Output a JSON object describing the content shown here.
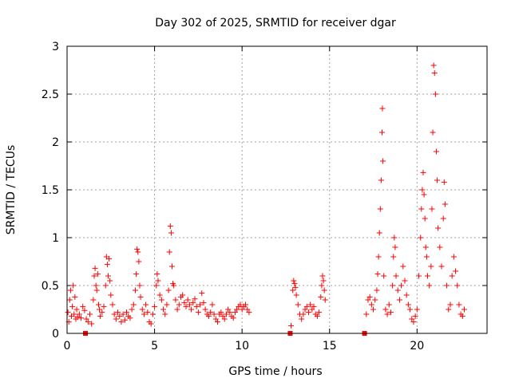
{
  "chart_data": {
    "type": "scatter",
    "title": "Day 302 of 2025, SRMTID for receiver dgar",
    "xlabel": "GPS time / hours",
    "ylabel": "SRMTID / TECUs",
    "xlim": [
      0,
      24
    ],
    "ylim": [
      0,
      3
    ],
    "xticks": [
      0,
      5,
      10,
      15,
      20
    ],
    "xtick_labels": [
      "0",
      "5",
      "10",
      "15",
      "20"
    ],
    "yticks": [
      0,
      0.5,
      1,
      1.5,
      2,
      2.5,
      3
    ],
    "ytick_labels": [
      "0",
      "0.5",
      "1",
      "1.5",
      "2",
      "2.5",
      "3"
    ],
    "grid": true,
    "marker": "+",
    "color": "#ff0000",
    "series": [
      {
        "name": "plus",
        "points": [
          [
            0.05,
            0.22
          ],
          [
            0.1,
            0.12
          ],
          [
            0.15,
            0.35
          ],
          [
            0.2,
            0.45
          ],
          [
            0.25,
            0.18
          ],
          [
            0.3,
            0.28
          ],
          [
            0.35,
            0.5
          ],
          [
            0.4,
            0.2
          ],
          [
            0.45,
            0.38
          ],
          [
            0.5,
            0.15
          ],
          [
            0.55,
            0.25
          ],
          [
            0.6,
            0.17
          ],
          [
            0.7,
            0.2
          ],
          [
            0.8,
            0.16
          ],
          [
            0.9,
            0.28
          ],
          [
            1.0,
            0.24
          ],
          [
            1.1,
            0.15
          ],
          [
            1.2,
            0.12
          ],
          [
            1.3,
            0.2
          ],
          [
            1.4,
            0.1
          ],
          [
            1.5,
            0.35
          ],
          [
            1.55,
            0.6
          ],
          [
            1.6,
            0.68
          ],
          [
            1.65,
            0.5
          ],
          [
            1.7,
            0.45
          ],
          [
            1.75,
            0.62
          ],
          [
            1.8,
            0.3
          ],
          [
            1.85,
            0.25
          ],
          [
            1.9,
            0.18
          ],
          [
            2.0,
            0.22
          ],
          [
            2.1,
            0.28
          ],
          [
            2.2,
            0.5
          ],
          [
            2.25,
            0.8
          ],
          [
            2.3,
            0.72
          ],
          [
            2.35,
            0.6
          ],
          [
            2.4,
            0.78
          ],
          [
            2.45,
            0.55
          ],
          [
            2.5,
            0.4
          ],
          [
            2.6,
            0.3
          ],
          [
            2.7,
            0.2
          ],
          [
            2.8,
            0.15
          ],
          [
            2.9,
            0.22
          ],
          [
            3.0,
            0.18
          ],
          [
            3.1,
            0.12
          ],
          [
            3.2,
            0.2
          ],
          [
            3.3,
            0.14
          ],
          [
            3.4,
            0.22
          ],
          [
            3.5,
            0.18
          ],
          [
            3.6,
            0.16
          ],
          [
            3.7,
            0.25
          ],
          [
            3.8,
            0.3
          ],
          [
            3.9,
            0.45
          ],
          [
            3.95,
            0.62
          ],
          [
            4.0,
            0.88
          ],
          [
            4.05,
            0.85
          ],
          [
            4.1,
            0.75
          ],
          [
            4.15,
            0.5
          ],
          [
            4.2,
            0.38
          ],
          [
            4.3,
            0.25
          ],
          [
            4.4,
            0.2
          ],
          [
            4.5,
            0.3
          ],
          [
            4.6,
            0.22
          ],
          [
            4.7,
            0.12
          ],
          [
            4.8,
            0.1
          ],
          [
            4.9,
            0.2
          ],
          [
            5.0,
            0.28
          ],
          [
            5.1,
            0.5
          ],
          [
            5.15,
            0.62
          ],
          [
            5.2,
            0.55
          ],
          [
            5.3,
            0.4
          ],
          [
            5.4,
            0.35
          ],
          [
            5.5,
            0.25
          ],
          [
            5.6,
            0.2
          ],
          [
            5.7,
            0.3
          ],
          [
            5.8,
            0.45
          ],
          [
            5.85,
            0.85
          ],
          [
            5.9,
            1.12
          ],
          [
            5.95,
            1.05
          ],
          [
            6.0,
            0.7
          ],
          [
            6.05,
            0.52
          ],
          [
            6.1,
            0.5
          ],
          [
            6.2,
            0.35
          ],
          [
            6.3,
            0.25
          ],
          [
            6.4,
            0.3
          ],
          [
            6.5,
            0.38
          ],
          [
            6.6,
            0.4
          ],
          [
            6.7,
            0.32
          ],
          [
            6.8,
            0.28
          ],
          [
            6.9,
            0.35
          ],
          [
            7.0,
            0.3
          ],
          [
            7.1,
            0.25
          ],
          [
            7.2,
            0.32
          ],
          [
            7.3,
            0.36
          ],
          [
            7.4,
            0.28
          ],
          [
            7.5,
            0.22
          ],
          [
            7.6,
            0.3
          ],
          [
            7.7,
            0.42
          ],
          [
            7.8,
            0.32
          ],
          [
            7.9,
            0.25
          ],
          [
            8.0,
            0.2
          ],
          [
            8.1,
            0.18
          ],
          [
            8.2,
            0.22
          ],
          [
            8.3,
            0.3
          ],
          [
            8.4,
            0.2
          ],
          [
            8.5,
            0.15
          ],
          [
            8.6,
            0.12
          ],
          [
            8.7,
            0.2
          ],
          [
            8.8,
            0.22
          ],
          [
            8.9,
            0.18
          ],
          [
            9.0,
            0.15
          ],
          [
            9.1,
            0.2
          ],
          [
            9.2,
            0.25
          ],
          [
            9.3,
            0.22
          ],
          [
            9.4,
            0.18
          ],
          [
            9.5,
            0.16
          ],
          [
            9.6,
            0.22
          ],
          [
            9.7,
            0.25
          ],
          [
            9.8,
            0.28
          ],
          [
            9.9,
            0.3
          ],
          [
            10.0,
            0.25
          ],
          [
            10.1,
            0.28
          ],
          [
            10.2,
            0.3
          ],
          [
            10.3,
            0.25
          ],
          [
            10.4,
            0.22
          ],
          [
            12.8,
            0.08
          ],
          [
            12.9,
            0.45
          ],
          [
            12.95,
            0.55
          ],
          [
            13.0,
            0.52
          ],
          [
            13.05,
            0.48
          ],
          [
            13.1,
            0.4
          ],
          [
            13.2,
            0.3
          ],
          [
            13.3,
            0.2
          ],
          [
            13.4,
            0.15
          ],
          [
            13.5,
            0.2
          ],
          [
            13.6,
            0.25
          ],
          [
            13.7,
            0.28
          ],
          [
            13.8,
            0.22
          ],
          [
            13.9,
            0.3
          ],
          [
            14.0,
            0.25
          ],
          [
            14.1,
            0.28
          ],
          [
            14.2,
            0.2
          ],
          [
            14.3,
            0.18
          ],
          [
            14.4,
            0.22
          ],
          [
            14.5,
            0.38
          ],
          [
            14.55,
            0.5
          ],
          [
            14.6,
            0.6
          ],
          [
            14.65,
            0.55
          ],
          [
            14.7,
            0.45
          ],
          [
            14.75,
            0.35
          ],
          [
            17.1,
            0.2
          ],
          [
            17.2,
            0.35
          ],
          [
            17.3,
            0.38
          ],
          [
            17.4,
            0.3
          ],
          [
            17.5,
            0.25
          ],
          [
            17.6,
            0.35
          ],
          [
            17.7,
            0.45
          ],
          [
            17.75,
            0.62
          ],
          [
            17.8,
            0.8
          ],
          [
            17.85,
            1.05
          ],
          [
            17.9,
            1.3
          ],
          [
            17.95,
            1.6
          ],
          [
            18.0,
            2.1
          ],
          [
            18.02,
            2.35
          ],
          [
            18.05,
            1.8
          ],
          [
            18.1,
            0.6
          ],
          [
            18.2,
            0.25
          ],
          [
            18.3,
            0.2
          ],
          [
            18.4,
            0.3
          ],
          [
            18.5,
            0.22
          ],
          [
            18.6,
            0.5
          ],
          [
            18.65,
            0.8
          ],
          [
            18.7,
            1.0
          ],
          [
            18.75,
            0.9
          ],
          [
            18.8,
            0.6
          ],
          [
            18.9,
            0.45
          ],
          [
            19.0,
            0.35
          ],
          [
            19.1,
            0.5
          ],
          [
            19.2,
            0.7
          ],
          [
            19.3,
            0.55
          ],
          [
            19.4,
            0.4
          ],
          [
            19.5,
            0.3
          ],
          [
            19.6,
            0.25
          ],
          [
            19.7,
            0.15
          ],
          [
            19.8,
            0.12
          ],
          [
            19.9,
            0.18
          ],
          [
            20.0,
            0.25
          ],
          [
            20.1,
            0.6
          ],
          [
            20.2,
            1.0
          ],
          [
            20.25,
            1.3
          ],
          [
            20.3,
            1.5
          ],
          [
            20.35,
            1.68
          ],
          [
            20.4,
            1.45
          ],
          [
            20.45,
            1.2
          ],
          [
            20.5,
            0.9
          ],
          [
            20.55,
            0.8
          ],
          [
            20.6,
            0.6
          ],
          [
            20.7,
            0.5
          ],
          [
            20.8,
            0.7
          ],
          [
            20.85,
            1.3
          ],
          [
            20.9,
            2.1
          ],
          [
            20.95,
            2.8
          ],
          [
            21.0,
            2.72
          ],
          [
            21.05,
            2.5
          ],
          [
            21.1,
            1.9
          ],
          [
            21.15,
            1.6
          ],
          [
            21.2,
            1.1
          ],
          [
            21.3,
            0.9
          ],
          [
            21.4,
            0.7
          ],
          [
            21.5,
            1.2
          ],
          [
            21.55,
            1.58
          ],
          [
            21.6,
            1.35
          ],
          [
            21.7,
            0.5
          ],
          [
            21.8,
            0.25
          ],
          [
            21.9,
            0.3
          ],
          [
            22.0,
            0.6
          ],
          [
            22.1,
            0.8
          ],
          [
            22.2,
            0.65
          ],
          [
            22.3,
            0.5
          ],
          [
            22.4,
            0.3
          ],
          [
            22.5,
            0.2
          ],
          [
            22.6,
            0.18
          ],
          [
            22.7,
            0.25
          ]
        ]
      },
      {
        "name": "square",
        "points": [
          [
            1.05,
            0.0
          ],
          [
            12.75,
            0.0
          ],
          [
            17.0,
            0.0
          ]
        ]
      }
    ]
  }
}
